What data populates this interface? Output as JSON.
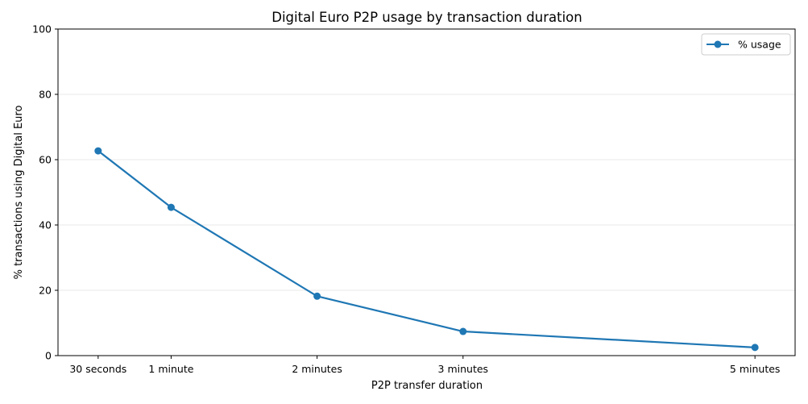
{
  "chart_data": {
    "type": "line",
    "title": "Digital Euro P2P usage by transaction duration",
    "xlabel": "P2P transfer duration",
    "ylabel": "% transactions using Digital Euro",
    "x_seconds": [
      30,
      60,
      120,
      180,
      300
    ],
    "x_tick_labels": [
      "30 seconds",
      "1 minute",
      "2 minutes",
      "3 minutes",
      "5 minutes"
    ],
    "series": [
      {
        "name": "% usage",
        "values": [
          62.7,
          45.4,
          18.2,
          7.4,
          2.5
        ],
        "color": "#1f77b4"
      }
    ],
    "ylim": [
      0,
      100
    ],
    "y_ticks": [
      "0",
      "20",
      "40",
      "60",
      "80",
      "100"
    ],
    "grid": "horizontal-light",
    "legend_position": "top-right"
  }
}
